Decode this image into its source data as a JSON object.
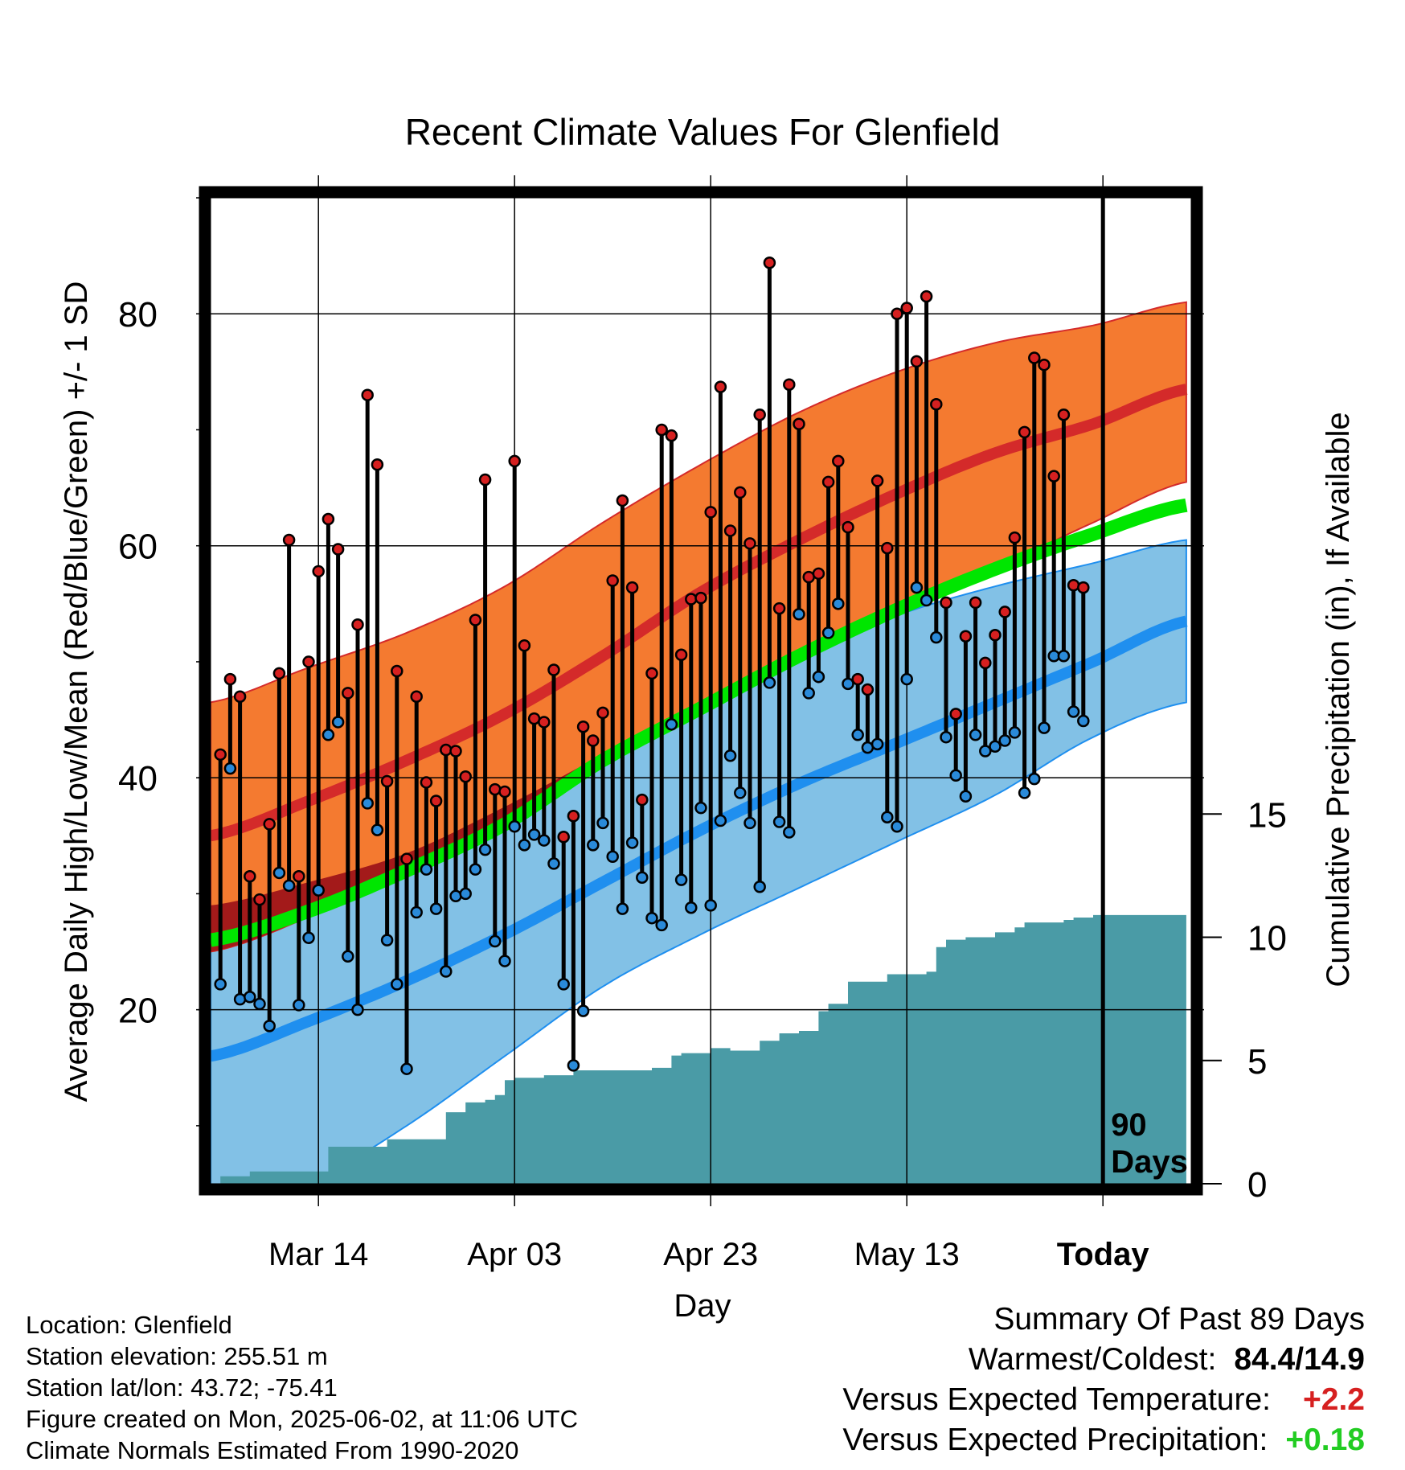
{
  "chart_data": {
    "type": "line",
    "title": "Recent Climate Values For Glenfield",
    "xlabel": "Day",
    "ylabel_left": "Average Daily High/Low/Mean (Red/Blue/Green) +/- 1 SD",
    "ylabel_right": "Cumulative Precipitation (in), If Available",
    "x_ticks": [
      {
        "label": "Mar 14",
        "day": 11
      },
      {
        "label": "Apr 03",
        "day": 31
      },
      {
        "label": "Apr 23",
        "day": 51
      },
      {
        "label": "May 13",
        "day": 71
      },
      {
        "label": "Today",
        "day": 91
      }
    ],
    "y_left_ticks": [
      "20",
      "40",
      "60",
      "80"
    ],
    "y_left_range": [
      5,
      90
    ],
    "y_right_ticks": [
      "0",
      "5",
      "10",
      "15"
    ],
    "y_right_range": [
      0,
      40
    ],
    "x_range": [
      0,
      100
    ],
    "today_label": "90 Days",
    "grid": true,
    "normals": {
      "days": [
        0,
        10,
        20,
        30,
        40,
        50,
        60,
        70,
        80,
        90,
        99.5
      ],
      "high_mean": [
        35.0,
        38.0,
        41.5,
        45.5,
        50.5,
        56.0,
        60.5,
        64.5,
        68.0,
        70.5,
        73.5
      ],
      "high_upper": [
        46.5,
        49.5,
        52.5,
        56.5,
        62.0,
        67.0,
        71.5,
        75.0,
        77.5,
        79.0,
        81.0
      ],
      "high_lower": [
        25.0,
        28.0,
        32.0,
        36.0,
        41.0,
        46.0,
        50.5,
        54.5,
        58.0,
        62.0,
        65.5
      ],
      "mean": [
        26.0,
        28.5,
        32.0,
        36.0,
        41.5,
        46.0,
        50.5,
        54.5,
        58.0,
        61.0,
        63.5
      ],
      "low_mean": [
        16.0,
        19.0,
        22.5,
        26.5,
        31.0,
        35.5,
        39.5,
        43.0,
        46.5,
        50.0,
        53.5
      ],
      "low_upper": [
        29.0,
        31.0,
        33.5,
        37.5,
        42.0,
        46.5,
        50.5,
        54.0,
        56.5,
        58.5,
        60.5
      ],
      "low_lower": [
        2.0,
        5.0,
        10.0,
        16.0,
        22.0,
        26.5,
        30.5,
        34.5,
        38.5,
        43.5,
        46.5
      ]
    },
    "series": [
      {
        "name": "High",
        "color": "#d62020",
        "values": [
          42.0,
          48.5,
          47.0,
          31.5,
          29.5,
          36.0,
          49.0,
          60.5,
          31.5,
          50.0,
          57.8,
          62.3,
          59.7,
          47.3,
          53.2,
          73.0,
          67.0,
          39.7,
          49.2,
          33.0,
          47.0,
          39.6,
          38.0,
          42.4,
          42.3,
          40.1,
          53.6,
          65.7,
          39.0,
          38.8,
          67.3,
          51.4,
          45.1,
          44.8,
          49.3,
          34.9,
          36.7,
          44.4,
          43.2,
          45.6,
          57.0,
          63.9,
          56.4,
          38.1,
          49.0,
          70.0,
          69.5,
          50.6,
          55.4,
          55.5,
          62.9,
          73.7,
          61.3,
          64.6,
          60.2,
          71.3,
          84.4,
          54.6,
          73.9,
          70.5,
          57.3,
          57.6,
          65.5,
          67.3,
          61.6,
          48.5,
          47.6,
          65.6,
          59.8,
          80.0,
          80.5,
          75.9,
          81.5,
          72.2,
          55.1,
          45.5,
          52.2,
          55.1,
          49.9,
          52.3,
          54.3,
          60.7,
          69.8,
          76.2,
          75.6,
          66.0,
          71.3,
          56.6,
          56.4
        ]
      },
      {
        "name": "Low",
        "color": "#2a8ad9",
        "values": [
          22.2,
          40.8,
          20.9,
          21.1,
          20.5,
          18.6,
          31.8,
          30.7,
          20.4,
          26.2,
          30.3,
          43.7,
          44.8,
          24.6,
          20.0,
          37.8,
          35.5,
          26.0,
          22.2,
          14.9,
          28.4,
          32.1,
          28.7,
          23.3,
          29.8,
          30.0,
          32.1,
          33.8,
          25.9,
          24.2,
          35.8,
          34.2,
          35.1,
          34.6,
          32.6,
          22.2,
          15.2,
          19.9,
          34.2,
          36.1,
          33.2,
          28.7,
          34.4,
          31.4,
          27.9,
          27.3,
          44.6,
          31.2,
          28.8,
          37.4,
          29.0,
          36.3,
          41.9,
          38.7,
          36.1,
          30.6,
          48.2,
          36.2,
          35.3,
          54.1,
          47.3,
          48.7,
          52.5,
          55.0,
          48.1,
          43.7,
          42.6,
          42.9,
          36.6,
          35.8,
          48.5,
          56.4,
          55.3,
          52.1,
          43.5,
          40.2,
          38.4,
          43.7,
          42.3,
          42.7,
          43.2,
          43.9,
          38.7,
          39.9,
          44.3,
          50.5,
          50.5,
          45.7,
          44.9
        ]
      }
    ],
    "precipitation": {
      "days": [
        0,
        1,
        4,
        10,
        12,
        18,
        22,
        24,
        26,
        28,
        29,
        30,
        31,
        32,
        34,
        37,
        40,
        41,
        45,
        47,
        48,
        51,
        53,
        56,
        58,
        60,
        62,
        63,
        65,
        69,
        73,
        74,
        75,
        77,
        80,
        82,
        83,
        84,
        87,
        88,
        90,
        99.5
      ],
      "values": [
        0.0,
        0.3,
        0.5,
        0.5,
        1.5,
        1.8,
        1.8,
        2.9,
        3.3,
        3.4,
        3.6,
        4.2,
        4.3,
        4.3,
        4.4,
        4.6,
        4.6,
        4.6,
        4.7,
        5.2,
        5.3,
        5.5,
        5.4,
        5.8,
        6.1,
        6.2,
        7.0,
        7.3,
        8.2,
        8.5,
        8.6,
        9.6,
        9.9,
        10.0,
        10.2,
        10.4,
        10.6,
        10.6,
        10.7,
        10.8,
        10.9,
        10.9
      ]
    }
  },
  "footer": {
    "location": "Location: Glenfield",
    "elevation": "Station elevation: 255.51 m",
    "latlon": "Station lat/lon: 43.72; -75.41",
    "created": "Figure created on Mon, 2025-06-02, at 11:06 UTC",
    "normals": "Climate Normals Estimated From 1990-2020"
  },
  "summary": {
    "title": "Summary Of Past 89 Days",
    "warmest_coldest_label": "Warmest/Coldest:",
    "warmest_coldest_value": "84.4/14.9",
    "temp_label": "Versus Expected Temperature:",
    "temp_value": "+2.2",
    "temp_color": "#d62020",
    "precip_label": "Versus Expected Precipitation:",
    "precip_value": "+0.18",
    "precip_color": "#22cc22"
  },
  "colors": {
    "high_band": "#f47a30",
    "high_line": "#d42a2a",
    "mean_line": "#00e600",
    "low_band": "#82c1e6",
    "low_line": "#1f8fef",
    "overlap": "#a31a1a",
    "precip_fill": "#4a9ba6"
  }
}
